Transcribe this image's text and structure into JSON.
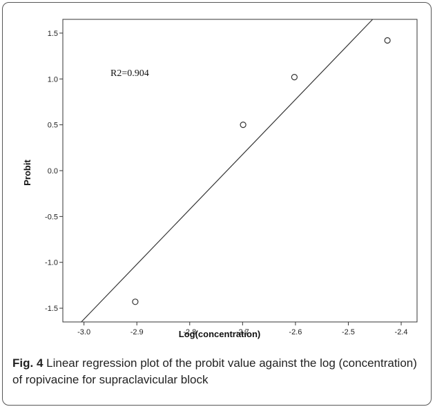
{
  "caption": {
    "label": "Fig. 4",
    "text": " Linear regression plot of the probit value against the log (concentration) of ropivacine for supraclavicular block"
  },
  "chart_data": {
    "type": "scatter",
    "xlabel": "Log(concentration)",
    "ylabel": "Probit",
    "xlim": [
      -3.04,
      -2.37
    ],
    "ylim": [
      -1.65,
      1.65
    ],
    "xticks": [
      -3.0,
      -2.9,
      -2.8,
      -2.7,
      -2.6,
      -2.5,
      -2.4
    ],
    "yticks": [
      -1.5,
      -1.0,
      -0.5,
      0.0,
      0.5,
      1.0,
      1.5
    ],
    "points": [
      {
        "x": -2.903,
        "y": -1.43
      },
      {
        "x": -2.699,
        "y": 0.5
      },
      {
        "x": -2.602,
        "y": 1.02
      },
      {
        "x": -2.426,
        "y": 1.42
      }
    ],
    "fit_line": {
      "x": [
        -3.005,
        -2.454
      ],
      "y": [
        -1.65,
        1.65
      ]
    },
    "annotation": "R2=0.904",
    "grid": false
  }
}
